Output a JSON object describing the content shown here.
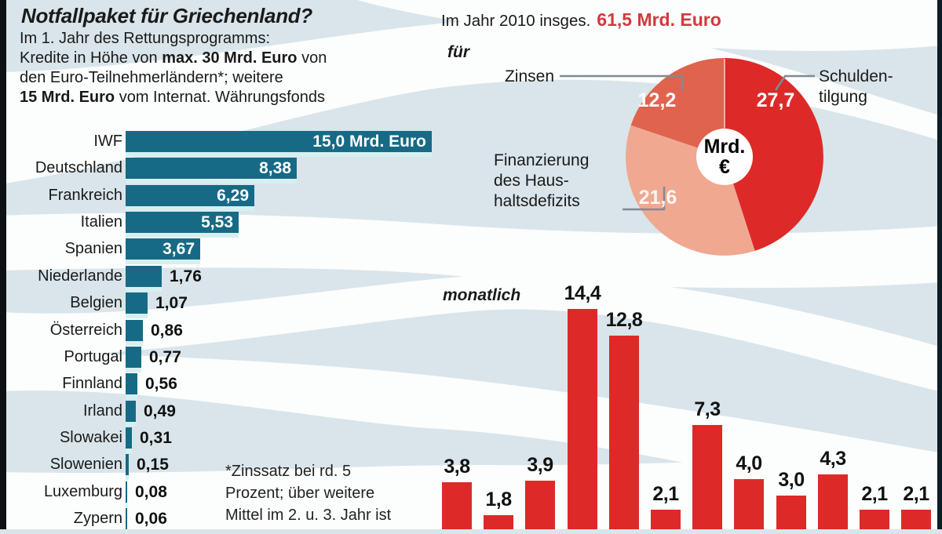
{
  "infographic": {
    "title": "Notfallpaket für Griechenland?",
    "intro_lines": [
      [
        {
          "t": "Im 1. Jahr des Rettungsprogramms:",
          "b": false
        }
      ],
      [
        {
          "t": "Kredite in Höhe von ",
          "b": false
        },
        {
          "t": "max. 30 Mrd. Euro",
          "b": true
        },
        {
          "t": " von",
          "b": false
        }
      ],
      [
        {
          "t": "den Euro-Teilnehmerländern*; weitere",
          "b": false
        }
      ],
      [
        {
          "t": "15 Mrd. Euro",
          "b": true
        },
        {
          "t": " vom Internat. Währungsfonds",
          "b": false
        }
      ]
    ],
    "footnote_lines": [
      "*Zinssatz bei rd. 5",
      "Prozent; über weitere",
      "Mittel im 2. u. 3. Jahr ist"
    ]
  },
  "colors": {
    "bar_teal": "#176a85",
    "bar_shadow_cyan": "#d6f0f1",
    "red": "#dd2a28",
    "zinsen_orange_red": "#e0634e",
    "deficit_salmon": "#f0a891",
    "headline_red": "#d03a3c",
    "background_blue": "#d9e5ea",
    "wave_white": "#fcfdfd",
    "leader_gray": "#7e8b94",
    "text_black": "#1a1a1a"
  },
  "chart_data": [
    {
      "type": "bar",
      "orientation": "horizontal",
      "name": "lender-contributions",
      "unit": "Mrd. Euro",
      "categories": [
        "IWF",
        "Deutschland",
        "Frankreich",
        "Italien",
        "Spanien",
        "Niederlande",
        "Belgien",
        "Österreich",
        "Portugal",
        "Finnland",
        "Irland",
        "Slowakei",
        "Slowenien",
        "Luxemburg",
        "Zypern"
      ],
      "values": [
        15.0,
        8.38,
        6.29,
        5.53,
        3.67,
        1.76,
        1.07,
        0.86,
        0.77,
        0.56,
        0.49,
        0.31,
        0.15,
        0.08,
        0.06
      ],
      "value_labels": [
        "15,0 Mrd. Euro",
        "8,38",
        "6,29",
        "5,53",
        "3,67",
        "1,76",
        "1,07",
        "0,86",
        "0,77",
        "0,56",
        "0,49",
        "0,31",
        "0,15",
        "0,08",
        "0,06"
      ],
      "bar_color": "#176a85"
    },
    {
      "type": "pie",
      "name": "use-of-funds-2010",
      "title_prefix": "Im Jahr 2010 insges.",
      "total_label": "61,5 Mrd. Euro",
      "total_value": 61.5,
      "for_label": "für",
      "center_label_lines": [
        "Mrd.",
        "€"
      ],
      "slices": [
        {
          "label": "Schuldentilgung",
          "display_label": [
            "Schulden-",
            "tilgung"
          ],
          "value": 27.7,
          "value_label": "27,7",
          "color": "#dd2a28"
        },
        {
          "label": "Finanzierung des Haushaltsdefizits",
          "display_label": [
            "Finanzierung",
            "des Haus-",
            "haltsdefizits"
          ],
          "value": 21.6,
          "value_label": "21,6",
          "color": "#f0a891"
        },
        {
          "label": "Zinsen",
          "display_label": [
            "Zinsen"
          ],
          "value": 12.2,
          "value_label": "12,2",
          "color": "#e0634e"
        }
      ]
    },
    {
      "type": "bar",
      "orientation": "vertical",
      "name": "monthly-need",
      "label": "monatlich",
      "values": [
        3.8,
        1.8,
        3.9,
        14.4,
        12.8,
        2.1,
        7.3,
        4.0,
        3.0,
        4.3,
        2.1,
        2.1
      ],
      "value_labels": [
        "3,8",
        "1,8",
        "3,9",
        "14,4",
        "12,8",
        "2,1",
        "7,3",
        "4,0",
        "3,0",
        "4,3",
        "2,1",
        "2,1"
      ],
      "bar_color": "#dd2a28"
    }
  ]
}
